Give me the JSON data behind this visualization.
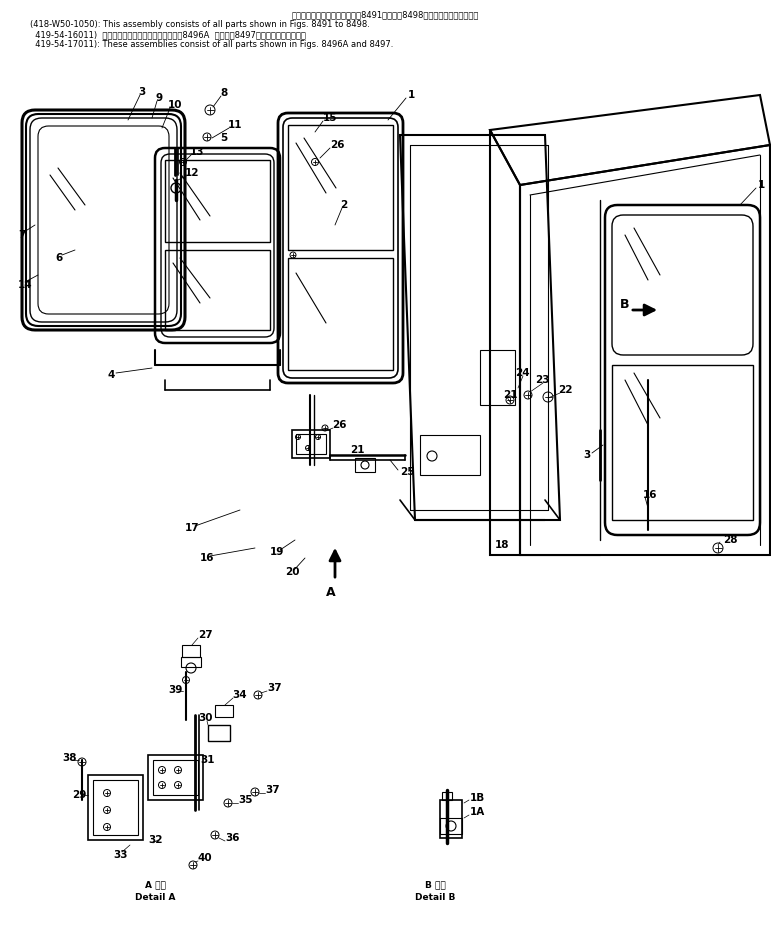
{
  "title_line1": "このアセンブリの構成部品は第8491個から第8498個の部品まで含みます。",
  "title_line2": "(418-W50-1050): This assembly consists of all parts shown in Figs. 8491 to 8498.",
  "title_line3": "  419-54-16011)  これらのアセンブリの構成部品は第8496A  および第8497図の部品を含みます。",
  "title_line4": "  419-54-17011): These assemblies consist of all parts shown in Figs. 8496A and 8497.",
  "detail_a_jp": "A 詳細",
  "detail_a_en": "Detail A",
  "detail_b_jp": "B 詳細",
  "detail_b_en": "Detail B",
  "bg_color": "#ffffff",
  "line_color": "#000000",
  "text_color": "#000000",
  "fig_width": 7.71,
  "fig_height": 9.36,
  "dpi": 100
}
